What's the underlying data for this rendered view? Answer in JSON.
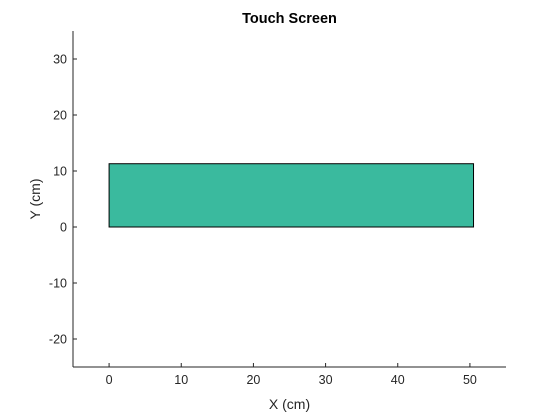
{
  "chart_data": {
    "type": "area",
    "title": "Touch Screen",
    "xlabel": "X (cm)",
    "ylabel": "Y (cm)",
    "xlim": [
      -5,
      55
    ],
    "ylim": [
      -25,
      35
    ],
    "xticks": [
      0,
      10,
      20,
      30,
      40,
      50
    ],
    "yticks": [
      -20,
      -10,
      0,
      10,
      20,
      30
    ],
    "xtick_labels": [
      "0",
      "10",
      "20",
      "30",
      "40",
      "50"
    ],
    "ytick_labels": [
      "-20",
      "-10",
      "0",
      "10",
      "20",
      "30"
    ],
    "grid": false,
    "shapes": [
      {
        "kind": "rectangle",
        "x": [
          0,
          50.5
        ],
        "y": [
          0,
          11.3
        ],
        "fill": "#3aba9e",
        "edge": "#000000"
      }
    ]
  }
}
